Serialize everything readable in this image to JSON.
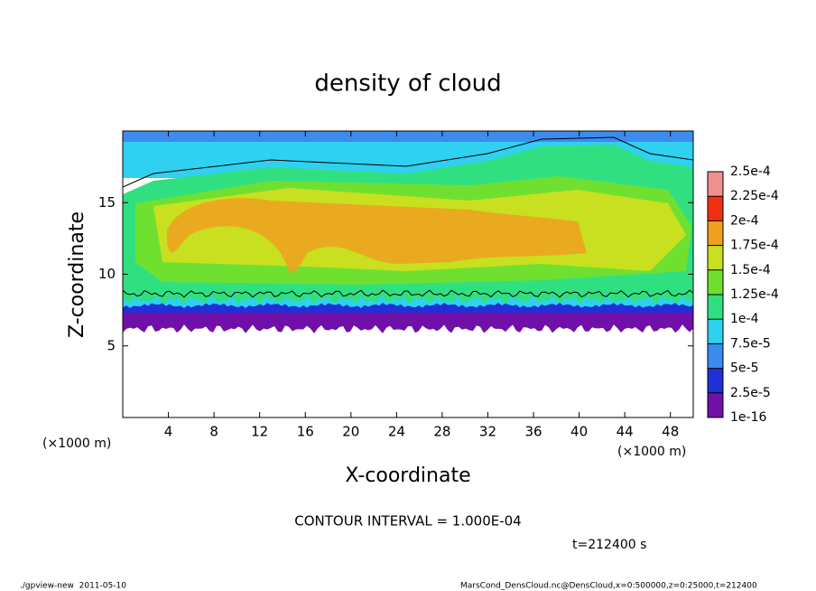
{
  "chart_data": {
    "type": "contour",
    "title": "density of cloud",
    "xlabel": "X-coordinate",
    "ylabel": "Z-coordinate",
    "x_unit": "(×1000 m)",
    "xlim": [
      0,
      50
    ],
    "xticks": [
      4,
      8,
      12,
      16,
      20,
      24,
      28,
      32,
      36,
      40,
      44,
      48
    ],
    "ylim": [
      0,
      20
    ],
    "yticks": [
      5,
      10,
      15
    ],
    "colorbar": {
      "levels": [
        {
          "value": 1e-16,
          "label": "1e-16"
        },
        {
          "value": 2.5e-05,
          "label": "2.5e-5"
        },
        {
          "value": 5e-05,
          "label": "5e-5"
        },
        {
          "value": 7.5e-05,
          "label": "7.5e-5"
        },
        {
          "value": 0.0001,
          "label": "1e-4"
        },
        {
          "value": 0.000125,
          "label": "1.25e-4"
        },
        {
          "value": 0.00015,
          "label": "1.5e-4"
        },
        {
          "value": 0.000175,
          "label": "1.75e-4"
        },
        {
          "value": 0.0002,
          "label": "2e-4"
        },
        {
          "value": 0.000225,
          "label": "2.25e-4"
        },
        {
          "value": 0.00025,
          "label": "2.5e-4"
        }
      ],
      "colors": [
        "#7010a8",
        "#2030d8",
        "#3c8cf0",
        "#30d0f0",
        "#30e080",
        "#70e030",
        "#c8e020",
        "#f0a020",
        "#f03010",
        "#f09090"
      ]
    },
    "contour_interval_text": "CONTOUR INTERVAL = 1.000E-04",
    "time_text": "t=212400 s",
    "footer_left": "./gpview-new  2011-05-10",
    "footer_right": "MarsCond_DensCloud.nc@DensCloud,x=0:500000,z=0:25000,t=212400"
  }
}
